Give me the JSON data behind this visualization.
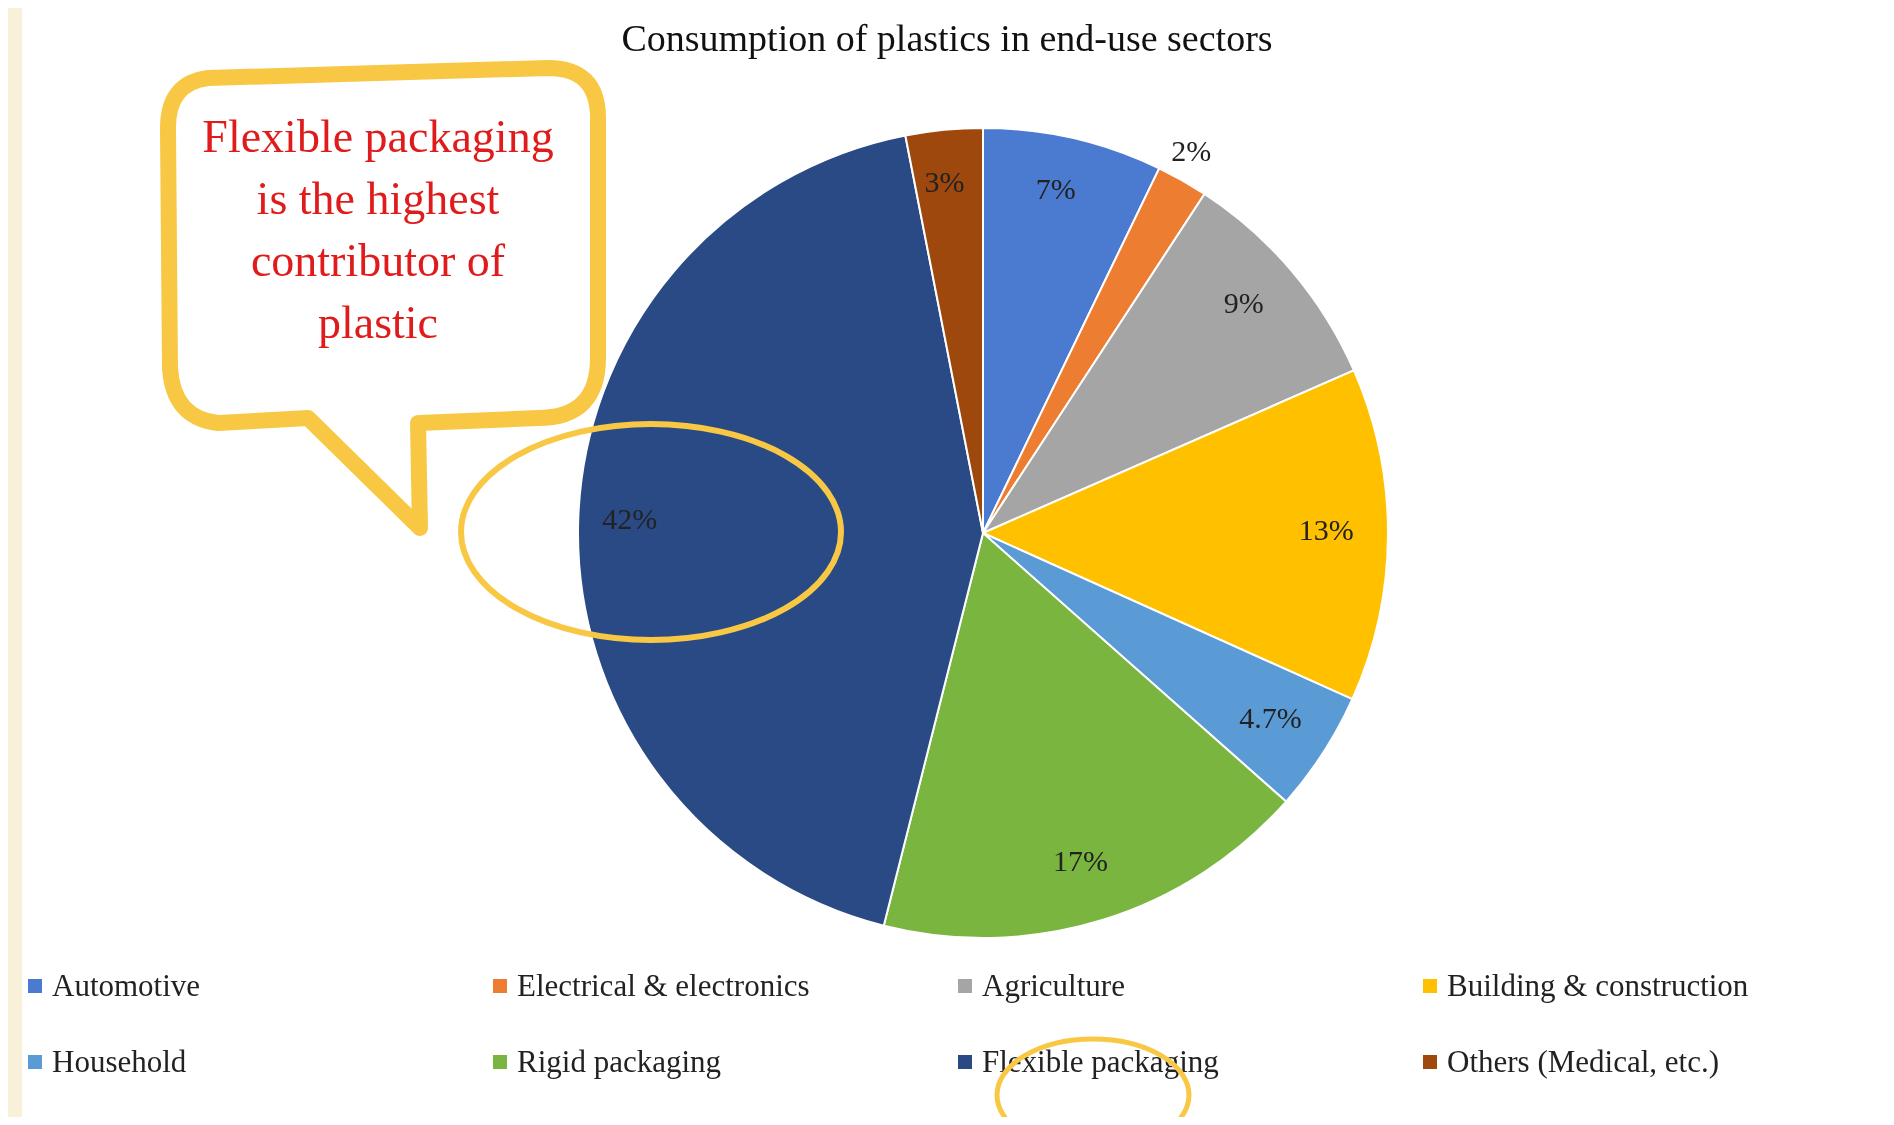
{
  "chart_data": {
    "type": "pie",
    "title": "Consumption of plastics in end-use sectors",
    "categories": [
      "Automotive",
      "Electrical & electronics",
      "Agriculture",
      "Building & construction",
      "Household",
      "Rigid packaging",
      "Flexible packaging",
      "Others (Medical, etc.)"
    ],
    "values": [
      7,
      2,
      9,
      13,
      4.7,
      17,
      42,
      3
    ],
    "value_labels": [
      "7%",
      "2%",
      "9%",
      "13%",
      "4.7%",
      "17%",
      "42%",
      "3%"
    ],
    "colors": [
      "#4a7bd0",
      "#ed7d31",
      "#a5a5a5",
      "#ffc000",
      "#5b9bd5",
      "#7ab540",
      "#294a85",
      "#9e480e"
    ],
    "legend": "bottom",
    "annotations": [
      "Flexible packaging is the highest contributor of plastic"
    ]
  }
}
